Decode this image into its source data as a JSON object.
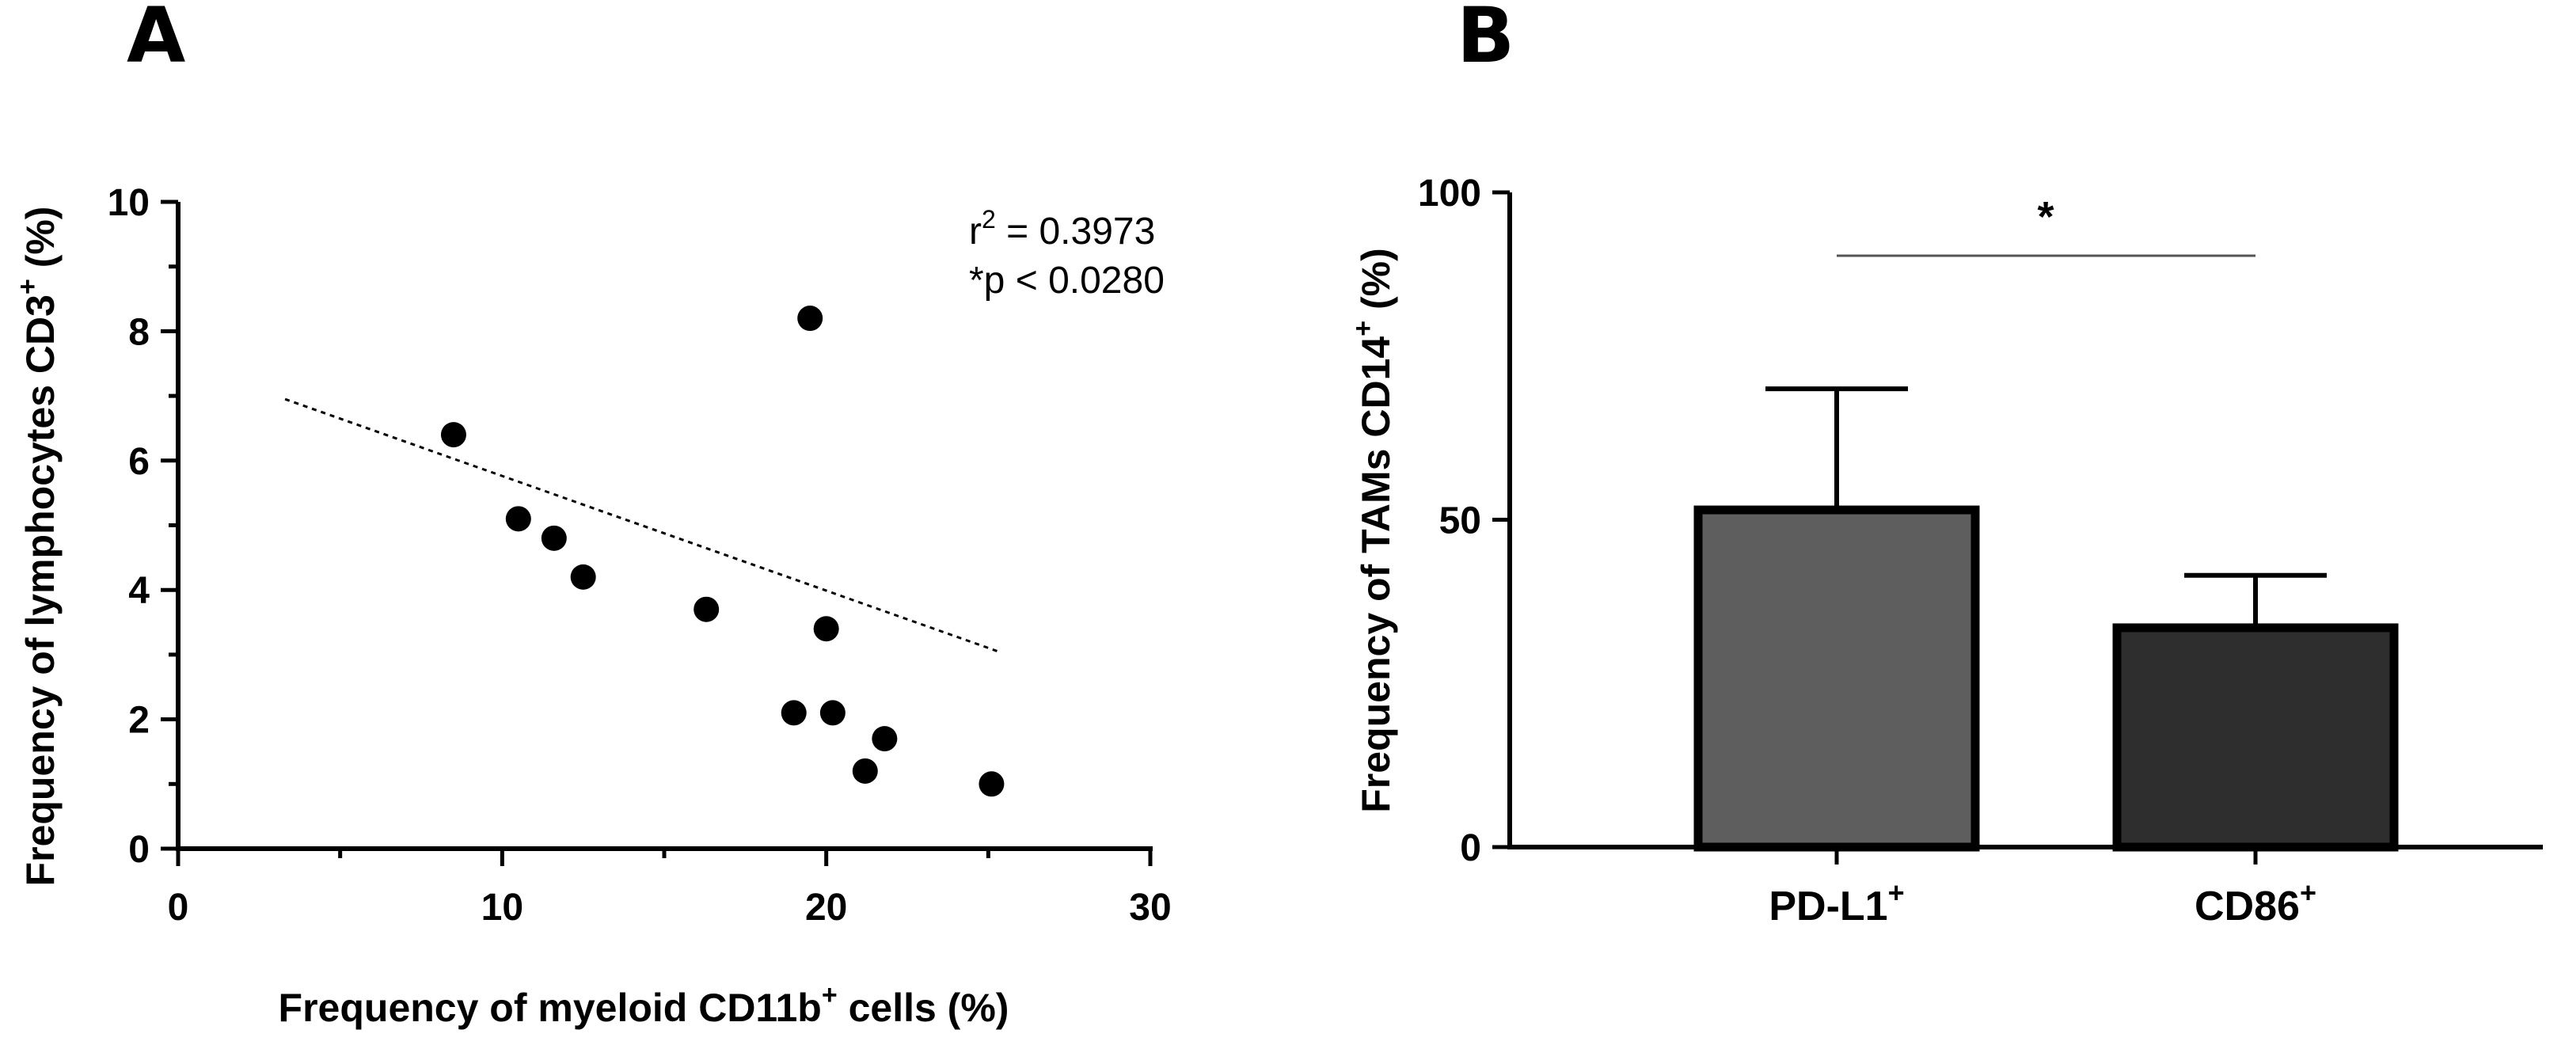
{
  "chart_data": [
    {
      "type": "scatter",
      "panel_label": "A",
      "xlabel": "Frequency of myeloid CD11b",
      "xlabel_sup": "+",
      "xlabel_suffix": " cells (%)",
      "ylabel": "Frequency of lymphocytes CD3",
      "ylabel_sup": "+",
      "ylabel_suffix": " (%)",
      "xlim": [
        0,
        30
      ],
      "ylim": [
        0,
        10
      ],
      "xticks": [
        0,
        10,
        20,
        30
      ],
      "yticks": [
        0,
        2,
        4,
        6,
        8,
        10
      ],
      "points": [
        {
          "x": 8.5,
          "y": 6.4
        },
        {
          "x": 10.5,
          "y": 5.1
        },
        {
          "x": 11.6,
          "y": 4.8
        },
        {
          "x": 12.5,
          "y": 4.2
        },
        {
          "x": 16.3,
          "y": 3.7
        },
        {
          "x": 19.0,
          "y": 2.1
        },
        {
          "x": 19.5,
          "y": 8.2
        },
        {
          "x": 20.0,
          "y": 3.4
        },
        {
          "x": 20.2,
          "y": 2.1
        },
        {
          "x": 21.8,
          "y": 1.7
        },
        {
          "x": 21.2,
          "y": 1.2
        },
        {
          "x": 25.1,
          "y": 1.0
        }
      ],
      "fit_line": {
        "x": [
          3.3,
          25.3
        ],
        "y": [
          6.95,
          3.05
        ]
      },
      "r2_label": "r",
      "r2_sup": "2",
      "r2_value": " = 0.3973",
      "p_label": "*p < 0.0280"
    },
    {
      "type": "bar",
      "panel_label": "B",
      "ylabel": "Frequency of TAMs CD14",
      "ylabel_sup": "+",
      "ylabel_suffix": " (%)",
      "ylim": [
        0,
        100
      ],
      "yticks": [
        0,
        50,
        100
      ],
      "categories": [
        {
          "name": "PD-L1",
          "sup": "+"
        },
        {
          "name": "CD86",
          "sup": "+"
        }
      ],
      "values": [
        51.5,
        33.5
      ],
      "error_upper": [
        70,
        41.5
      ],
      "bar_colors": [
        "#5e5e5e",
        "#2e2e2e"
      ],
      "significance_label": "*"
    }
  ]
}
